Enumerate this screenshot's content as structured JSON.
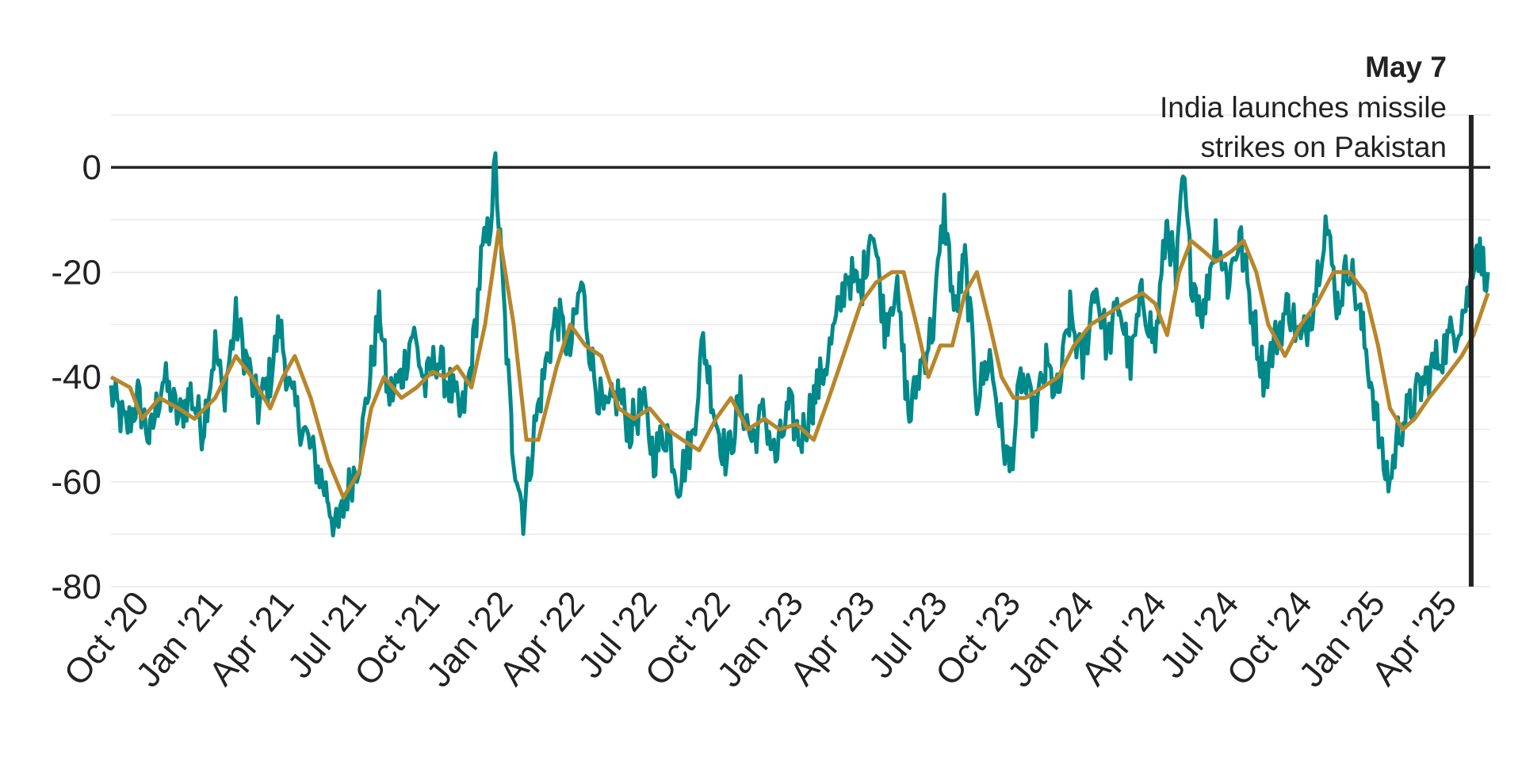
{
  "chart_data": {
    "type": "line",
    "title": "",
    "xlabel": "",
    "ylabel": "",
    "x_range": [
      "2020-09-01",
      "2025-05-31"
    ],
    "ylim": [
      -80,
      10
    ],
    "yticks": [
      0,
      -20,
      -40,
      -60,
      -80
    ],
    "ytick_labels": [
      "0",
      "-20",
      "-40",
      "-60",
      "-80"
    ],
    "xticks": [
      {
        "date": "2020-10-01",
        "label": "Oct '20"
      },
      {
        "date": "2021-01-01",
        "label": "Jan '21"
      },
      {
        "date": "2021-04-01",
        "label": "Apr '21"
      },
      {
        "date": "2021-07-01",
        "label": "Jul '21"
      },
      {
        "date": "2021-10-01",
        "label": "Oct '21"
      },
      {
        "date": "2022-01-01",
        "label": "Jan '22"
      },
      {
        "date": "2022-04-01",
        "label": "Apr '22"
      },
      {
        "date": "2022-07-01",
        "label": "Jul '22"
      },
      {
        "date": "2022-10-01",
        "label": "Oct '22"
      },
      {
        "date": "2023-01-01",
        "label": "Jan '23"
      },
      {
        "date": "2023-04-01",
        "label": "Apr '23"
      },
      {
        "date": "2023-07-01",
        "label": "Jul '23"
      },
      {
        "date": "2023-10-01",
        "label": "Oct '23"
      },
      {
        "date": "2024-01-01",
        "label": "Jan '24"
      },
      {
        "date": "2024-04-01",
        "label": "Apr '24"
      },
      {
        "date": "2024-07-01",
        "label": "Jul '24"
      },
      {
        "date": "2024-10-01",
        "label": "Oct '24"
      },
      {
        "date": "2025-01-01",
        "label": "Jan '25"
      },
      {
        "date": "2025-04-01",
        "label": "Apr '25"
      }
    ],
    "grid": true,
    "legend": "none",
    "series": [
      {
        "color": "#00898a",
        "points": [
          [
            "2020-09-01",
            -43
          ],
          [
            "2020-09-20",
            -50
          ],
          [
            "2020-10-05",
            -44
          ],
          [
            "2020-10-20",
            -52
          ],
          [
            "2020-11-05",
            -40
          ],
          [
            "2020-11-25",
            -48
          ],
          [
            "2020-12-10",
            -43
          ],
          [
            "2020-12-25",
            -50
          ],
          [
            "2021-01-10",
            -34
          ],
          [
            "2021-01-20",
            -44
          ],
          [
            "2021-02-05",
            -29
          ],
          [
            "2021-02-20",
            -38
          ],
          [
            "2021-03-05",
            -46
          ],
          [
            "2021-03-20",
            -40
          ],
          [
            "2021-04-01",
            -30
          ],
          [
            "2021-04-15",
            -44
          ],
          [
            "2021-05-01",
            -50
          ],
          [
            "2021-05-15",
            -56
          ],
          [
            "2021-06-01",
            -63
          ],
          [
            "2021-06-12",
            -70
          ],
          [
            "2021-06-25",
            -62
          ],
          [
            "2021-07-10",
            -55
          ],
          [
            "2021-07-25",
            -38
          ],
          [
            "2021-08-05",
            -27
          ],
          [
            "2021-08-15",
            -44
          ],
          [
            "2021-09-01",
            -40
          ],
          [
            "2021-09-15",
            -31
          ],
          [
            "2021-10-01",
            -42
          ],
          [
            "2021-10-15",
            -36
          ],
          [
            "2021-11-01",
            -42
          ],
          [
            "2021-11-15",
            -48
          ],
          [
            "2021-11-28",
            -38
          ],
          [
            "2021-12-10",
            -18
          ],
          [
            "2021-12-20",
            -12
          ],
          [
            "2021-12-28",
            0
          ],
          [
            "2022-01-05",
            -20
          ],
          [
            "2022-01-18",
            -52
          ],
          [
            "2022-02-01",
            -66
          ],
          [
            "2022-02-15",
            -50
          ],
          [
            "2022-03-01",
            -38
          ],
          [
            "2022-03-15",
            -28
          ],
          [
            "2022-04-01",
            -35
          ],
          [
            "2022-04-15",
            -22
          ],
          [
            "2022-05-01",
            -40
          ],
          [
            "2022-05-15",
            -48
          ],
          [
            "2022-06-01",
            -43
          ],
          [
            "2022-06-15",
            -50
          ],
          [
            "2022-07-01",
            -45
          ],
          [
            "2022-07-15",
            -55
          ],
          [
            "2022-08-01",
            -50
          ],
          [
            "2022-08-15",
            -60
          ],
          [
            "2022-09-01",
            -52
          ],
          [
            "2022-09-15",
            -33
          ],
          [
            "2022-10-01",
            -48
          ],
          [
            "2022-10-15",
            -56
          ],
          [
            "2022-11-01",
            -44
          ],
          [
            "2022-11-15",
            -52
          ],
          [
            "2022-12-01",
            -47
          ],
          [
            "2022-12-15",
            -56
          ],
          [
            "2023-01-01",
            -46
          ],
          [
            "2023-01-15",
            -52
          ],
          [
            "2023-02-01",
            -44
          ],
          [
            "2023-02-15",
            -38
          ],
          [
            "2023-03-01",
            -30
          ],
          [
            "2023-03-15",
            -20
          ],
          [
            "2023-04-01",
            -24
          ],
          [
            "2023-04-15",
            -10
          ],
          [
            "2023-05-01",
            -30
          ],
          [
            "2023-05-15",
            -22
          ],
          [
            "2023-06-01",
            -48
          ],
          [
            "2023-06-15",
            -38
          ],
          [
            "2023-07-01",
            -30
          ],
          [
            "2023-07-15",
            -8
          ],
          [
            "2023-07-28",
            -28
          ],
          [
            "2023-08-10",
            -18
          ],
          [
            "2023-08-25",
            -44
          ],
          [
            "2023-09-10",
            -36
          ],
          [
            "2023-09-25",
            -50
          ],
          [
            "2023-10-05",
            -58
          ],
          [
            "2023-10-20",
            -40
          ],
          [
            "2023-11-05",
            -48
          ],
          [
            "2023-11-20",
            -38
          ],
          [
            "2023-12-05",
            -44
          ],
          [
            "2023-12-20",
            -28
          ],
          [
            "2024-01-05",
            -38
          ],
          [
            "2024-01-20",
            -22
          ],
          [
            "2024-02-05",
            -34
          ],
          [
            "2024-02-20",
            -26
          ],
          [
            "2024-03-05",
            -38
          ],
          [
            "2024-03-20",
            -24
          ],
          [
            "2024-04-05",
            -34
          ],
          [
            "2024-04-20",
            -10
          ],
          [
            "2024-05-01",
            -22
          ],
          [
            "2024-05-10",
            -2
          ],
          [
            "2024-05-20",
            -20
          ],
          [
            "2024-06-05",
            -28
          ],
          [
            "2024-06-20",
            -12
          ],
          [
            "2024-07-05",
            -22
          ],
          [
            "2024-07-20",
            -13
          ],
          [
            "2024-08-05",
            -28
          ],
          [
            "2024-08-20",
            -40
          ],
          [
            "2024-09-05",
            -32
          ],
          [
            "2024-09-20",
            -26
          ],
          [
            "2024-10-05",
            -34
          ],
          [
            "2024-10-20",
            -26
          ],
          [
            "2024-11-05",
            -10
          ],
          [
            "2024-11-20",
            -26
          ],
          [
            "2024-12-05",
            -18
          ],
          [
            "2024-12-20",
            -30
          ],
          [
            "2025-01-05",
            -44
          ],
          [
            "2025-01-15",
            -56
          ],
          [
            "2025-01-25",
            -60
          ],
          [
            "2025-02-05",
            -50
          ],
          [
            "2025-02-20",
            -46
          ],
          [
            "2025-03-05",
            -42
          ],
          [
            "2025-03-20",
            -38
          ],
          [
            "2025-04-05",
            -34
          ],
          [
            "2025-04-20",
            -30
          ],
          [
            "2025-05-05",
            -24
          ],
          [
            "2025-05-12",
            -14
          ],
          [
            "2025-05-20",
            -18
          ],
          [
            "2025-05-28",
            -20
          ]
        ]
      },
      {
        "color": "#b8862a",
        "points": [
          [
            "2020-09-01",
            -40
          ],
          [
            "2020-09-25",
            -42
          ],
          [
            "2020-10-10",
            -48
          ],
          [
            "2020-11-01",
            -44
          ],
          [
            "2020-11-25",
            -46
          ],
          [
            "2020-12-15",
            -48
          ],
          [
            "2021-01-10",
            -44
          ],
          [
            "2021-02-05",
            -36
          ],
          [
            "2021-02-25",
            -40
          ],
          [
            "2021-03-20",
            -46
          ],
          [
            "2021-04-05",
            -40
          ],
          [
            "2021-04-20",
            -36
          ],
          [
            "2021-05-10",
            -44
          ],
          [
            "2021-06-01",
            -56
          ],
          [
            "2021-06-20",
            -63
          ],
          [
            "2021-07-10",
            -58
          ],
          [
            "2021-07-25",
            -46
          ],
          [
            "2021-08-10",
            -40
          ],
          [
            "2021-09-01",
            -44
          ],
          [
            "2021-09-20",
            -42
          ],
          [
            "2021-10-10",
            -39
          ],
          [
            "2021-10-25",
            -40
          ],
          [
            "2021-11-10",
            -38
          ],
          [
            "2021-11-28",
            -42
          ],
          [
            "2021-12-15",
            -30
          ],
          [
            "2022-01-01",
            -12
          ],
          [
            "2022-01-20",
            -30
          ],
          [
            "2022-02-05",
            -52
          ],
          [
            "2022-02-20",
            -52
          ],
          [
            "2022-03-15",
            -38
          ],
          [
            "2022-04-01",
            -30
          ],
          [
            "2022-04-20",
            -34
          ],
          [
            "2022-05-10",
            -36
          ],
          [
            "2022-06-01",
            -46
          ],
          [
            "2022-06-20",
            -48
          ],
          [
            "2022-07-10",
            -46
          ],
          [
            "2022-08-01",
            -50
          ],
          [
            "2022-08-20",
            -52
          ],
          [
            "2022-09-10",
            -54
          ],
          [
            "2022-10-01",
            -48
          ],
          [
            "2022-10-20",
            -44
          ],
          [
            "2022-11-10",
            -50
          ],
          [
            "2022-12-01",
            -48
          ],
          [
            "2022-12-20",
            -50
          ],
          [
            "2023-01-10",
            -49
          ],
          [
            "2023-02-01",
            -52
          ],
          [
            "2023-02-20",
            -44
          ],
          [
            "2023-03-10",
            -36
          ],
          [
            "2023-04-01",
            -26
          ],
          [
            "2023-04-20",
            -22
          ],
          [
            "2023-05-10",
            -20
          ],
          [
            "2023-05-25",
            -20
          ],
          [
            "2023-06-10",
            -30
          ],
          [
            "2023-06-25",
            -40
          ],
          [
            "2023-07-10",
            -34
          ],
          [
            "2023-07-25",
            -34
          ],
          [
            "2023-08-10",
            -24
          ],
          [
            "2023-08-25",
            -20
          ],
          [
            "2023-09-10",
            -30
          ],
          [
            "2023-09-25",
            -40
          ],
          [
            "2023-10-10",
            -44
          ],
          [
            "2023-10-25",
            -44
          ],
          [
            "2023-11-15",
            -42
          ],
          [
            "2023-12-05",
            -40
          ],
          [
            "2023-12-25",
            -34
          ],
          [
            "2024-01-15",
            -30
          ],
          [
            "2024-02-05",
            -28
          ],
          [
            "2024-02-25",
            -26
          ],
          [
            "2024-03-20",
            -24
          ],
          [
            "2024-04-05",
            -26
          ],
          [
            "2024-04-20",
            -32
          ],
          [
            "2024-05-05",
            -20
          ],
          [
            "2024-05-20",
            -14
          ],
          [
            "2024-06-05",
            -16
          ],
          [
            "2024-06-20",
            -18
          ],
          [
            "2024-07-10",
            -16
          ],
          [
            "2024-07-25",
            -14
          ],
          [
            "2024-08-10",
            -20
          ],
          [
            "2024-08-25",
            -30
          ],
          [
            "2024-09-15",
            -36
          ],
          [
            "2024-10-05",
            -30
          ],
          [
            "2024-10-25",
            -26
          ],
          [
            "2024-11-15",
            -20
          ],
          [
            "2024-12-05",
            -20
          ],
          [
            "2024-12-25",
            -24
          ],
          [
            "2025-01-10",
            -34
          ],
          [
            "2025-01-25",
            -46
          ],
          [
            "2025-02-10",
            -50
          ],
          [
            "2025-02-25",
            -48
          ],
          [
            "2025-03-15",
            -44
          ],
          [
            "2025-04-05",
            -40
          ],
          [
            "2025-04-25",
            -36
          ],
          [
            "2025-05-10",
            -32
          ],
          [
            "2025-05-28",
            -24
          ]
        ]
      }
    ],
    "annotations": [
      {
        "date": "2025-05-07",
        "label": "May 7",
        "text_lines": [
          "India launches missile",
          "strikes on Pakistan"
        ]
      }
    ]
  }
}
